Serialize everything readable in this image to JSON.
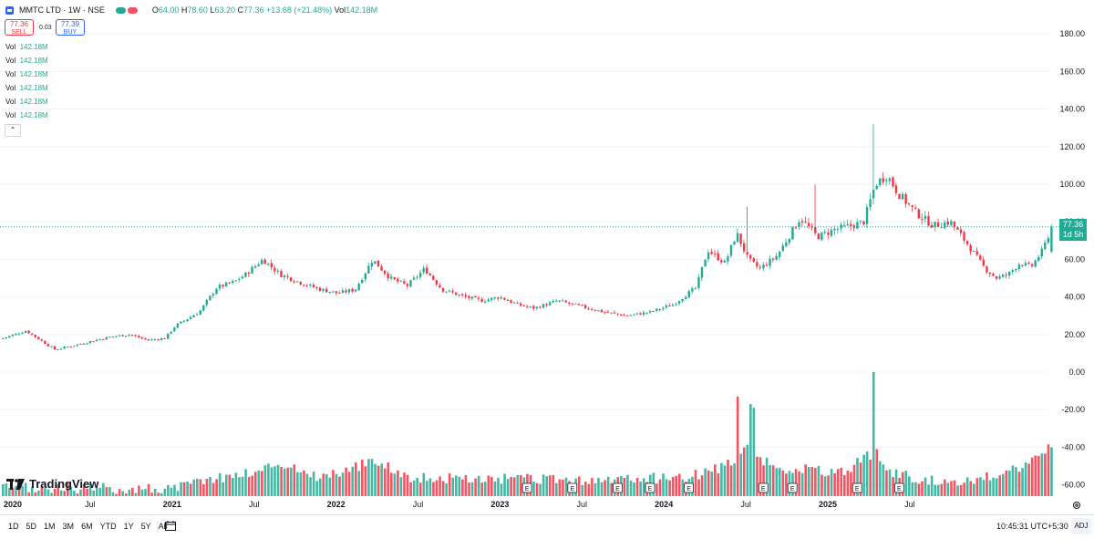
{
  "header": {
    "symbol_title": "MMTC LTD · 1W · NSE",
    "open_k": "O",
    "open": "64.00",
    "high_k": "H",
    "high": "78.60",
    "low_k": "L",
    "low": "63.20",
    "close_k": "C",
    "close": "77.36",
    "change": "+13.68 (+21.48%)",
    "vol_k": "Vol",
    "vol": "142.18M"
  },
  "trade": {
    "sell_price": "77.36",
    "sell_label": "SELL",
    "buy_price": "77.39",
    "buy_label": "BUY",
    "spread": "0.03"
  },
  "indicators": [
    {
      "label": "Vol",
      "value": "142.18M"
    },
    {
      "label": "Vol",
      "value": "142.18M"
    },
    {
      "label": "Vol",
      "value": "142.18M"
    },
    {
      "label": "Vol",
      "value": "142.18M"
    },
    {
      "label": "Vol",
      "value": "142.18M"
    },
    {
      "label": "Vol",
      "value": "142.18M"
    }
  ],
  "collapse_glyph": "⌃",
  "last_price": {
    "value": "77.36",
    "countdown": "1d 5h"
  },
  "brand": "TradingView",
  "toolbar": {
    "ranges": [
      "1D",
      "5D",
      "1M",
      "3M",
      "6M",
      "YTD",
      "1Y",
      "5Y",
      "All"
    ],
    "time": "10:45:31 UTC+5:30",
    "adj": "ADJ"
  },
  "colors": {
    "up": "#22ab94",
    "down": "#f23645",
    "grid": "#f0f3fa"
  },
  "chart_data": {
    "type": "candlestick",
    "price_axis_ticks": [
      "180.00",
      "160.00",
      "140.00",
      "120.00",
      "100.00",
      "80.00",
      "60.00",
      "40.00",
      "20.00",
      "0.00",
      "-20.00",
      "-40.00",
      "-60.00"
    ],
    "ylim": [
      -66,
      184
    ],
    "x_ticks": [
      "2020",
      "Jul",
      "2021",
      "Jul",
      "2022",
      "Jul",
      "2023",
      "Jul",
      "2024",
      "Jul",
      "2025",
      "Jul"
    ],
    "x_ticks_bold": [
      true,
      false,
      true,
      false,
      true,
      false,
      true,
      false,
      true,
      false,
      true,
      false
    ],
    "last_price": 77.36,
    "earnings_marker": "E",
    "earnings_weeks": [
      182,
      197,
      213,
      224,
      238,
      263,
      273,
      296,
      310
    ],
    "weeks": 325,
    "anchors": [
      [
        0,
        18
      ],
      [
        8,
        22
      ],
      [
        14,
        16
      ],
      [
        18,
        12
      ],
      [
        24,
        14
      ],
      [
        32,
        17
      ],
      [
        38,
        19
      ],
      [
        44,
        20
      ],
      [
        50,
        17
      ],
      [
        56,
        18
      ],
      [
        60,
        25
      ],
      [
        68,
        32
      ],
      [
        74,
        45
      ],
      [
        80,
        48
      ],
      [
        84,
        52
      ],
      [
        90,
        60
      ],
      [
        96,
        52
      ],
      [
        104,
        47
      ],
      [
        110,
        44
      ],
      [
        116,
        42
      ],
      [
        122,
        44
      ],
      [
        128,
        60
      ],
      [
        134,
        50
      ],
      [
        140,
        46
      ],
      [
        146,
        55
      ],
      [
        152,
        44
      ],
      [
        160,
        40
      ],
      [
        166,
        38
      ],
      [
        172,
        40
      ],
      [
        178,
        36
      ],
      [
        184,
        34
      ],
      [
        192,
        38
      ],
      [
        200,
        35
      ],
      [
        208,
        32
      ],
      [
        216,
        30
      ],
      [
        224,
        32
      ],
      [
        232,
        36
      ],
      [
        240,
        45
      ],
      [
        244,
        65
      ],
      [
        250,
        58
      ],
      [
        254,
        74
      ],
      [
        258,
        60
      ],
      [
        262,
        55
      ],
      [
        268,
        62
      ],
      [
        272,
        72
      ],
      [
        276,
        82
      ],
      [
        282,
        72
      ],
      [
        288,
        76
      ],
      [
        294,
        78
      ],
      [
        298,
        80
      ],
      [
        302,
        100
      ],
      [
        306,
        105
      ],
      [
        310,
        95
      ],
      [
        316,
        85
      ],
      [
        322,
        78
      ],
      [
        328,
        80
      ],
      [
        334,
        68
      ],
      [
        340,
        55
      ],
      [
        344,
        50
      ],
      [
        348,
        52
      ],
      [
        352,
        58
      ],
      [
        356,
        56
      ],
      [
        360,
        65
      ],
      [
        363,
        77.36
      ]
    ],
    "spike_highs": [
      [
        258,
        88
      ],
      [
        281,
        100
      ],
      [
        301,
        132
      ]
    ],
    "volume_anchors": [
      [
        0,
        -62
      ],
      [
        20,
        -62
      ],
      [
        40,
        -62
      ],
      [
        60,
        -62
      ],
      [
        70,
        -57
      ],
      [
        80,
        -55
      ],
      [
        90,
        -52
      ],
      [
        95,
        -48
      ],
      [
        110,
        -56
      ],
      [
        130,
        -47
      ],
      [
        140,
        -56
      ],
      [
        160,
        -57
      ],
      [
        180,
        -57
      ],
      [
        200,
        -58
      ],
      [
        220,
        -57
      ],
      [
        240,
        -55
      ],
      [
        250,
        -50
      ],
      [
        258,
        -40
      ],
      [
        262,
        -47
      ],
      [
        270,
        -52
      ],
      [
        280,
        -52
      ],
      [
        290,
        -54
      ],
      [
        296,
        -48
      ],
      [
        300,
        -44
      ],
      [
        306,
        -53
      ],
      [
        320,
        -58
      ],
      [
        330,
        -58
      ],
      [
        340,
        -56
      ],
      [
        350,
        -52
      ],
      [
        363,
        -40
      ]
    ],
    "volume_spikes": [
      [
        254,
        -13
      ],
      [
        259,
        -17
      ],
      [
        260,
        -19
      ],
      [
        301,
        0
      ],
      [
        303,
        -41
      ],
      [
        363,
        -40
      ]
    ],
    "volume_zero": -66
  }
}
